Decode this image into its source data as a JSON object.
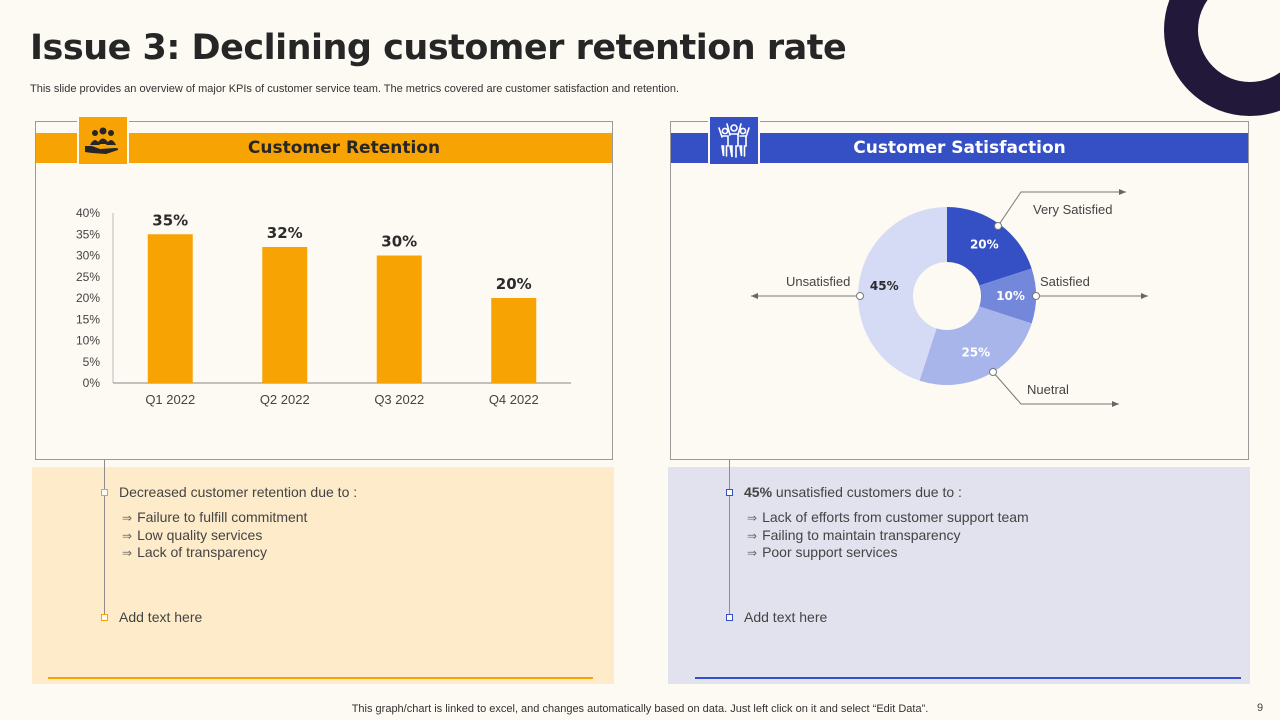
{
  "slide": {
    "title": "Issue 3: Declining customer retention rate",
    "subtitle": "This slide provides an overview of major KPIs of customer service team. The metrics covered are customer satisfaction and retention.",
    "footer": "This graph/chart is linked to excel,  and changes automatically based on data. Just left click on it and select “Edit Data”.",
    "page_number": "9"
  },
  "colors": {
    "orange": "#f8a304",
    "blue": "#3550c4",
    "dark": "#22193a"
  },
  "left_card": {
    "heading": "Customer Retention",
    "icon": "hand-group-icon"
  },
  "right_card": {
    "heading": "Customer Satisfaction",
    "icon": "people-cheering-icon"
  },
  "chart_data": [
    {
      "type": "bar",
      "title": "Customer Retention",
      "categories": [
        "Q1 2022",
        "Q2 2022",
        "Q3 2022",
        "Q4 2022"
      ],
      "values": [
        35,
        32,
        30,
        20
      ],
      "value_labels": [
        "35%",
        "32%",
        "30%",
        "20%"
      ],
      "ylim": [
        0,
        40
      ],
      "yticks": [
        "0%",
        "5%",
        "10%",
        "15%",
        "20%",
        "25%",
        "30%",
        "35%",
        "40%"
      ],
      "grid": false,
      "xlabel": "",
      "ylabel": ""
    },
    {
      "type": "pie",
      "title": "Customer Satisfaction",
      "labels": [
        "Very Satisfied",
        "Satisfied",
        "Nuetral",
        "Unsatisfied"
      ],
      "values": [
        20,
        10,
        25,
        45
      ],
      "value_labels": [
        "20%",
        "10%",
        "25%",
        "45%"
      ],
      "colors": [
        "#3550c4",
        "#7387db",
        "#a8b5ea",
        "#d5daf5"
      ]
    }
  ],
  "left_panel": {
    "heading": "Decreased customer retention due to :",
    "items": [
      "Failure to fulfill commitment",
      "Low quality services",
      "Lack of transparency"
    ],
    "footer": "Add text here"
  },
  "right_panel": {
    "heading_bold": "45%",
    "heading_rest": " unsatisfied customers due to :",
    "items": [
      "Lack of efforts from customer support team",
      "Failing to maintain transparency",
      "Poor support services"
    ],
    "footer": "Add text here"
  },
  "bullet_arrow": "⇒"
}
